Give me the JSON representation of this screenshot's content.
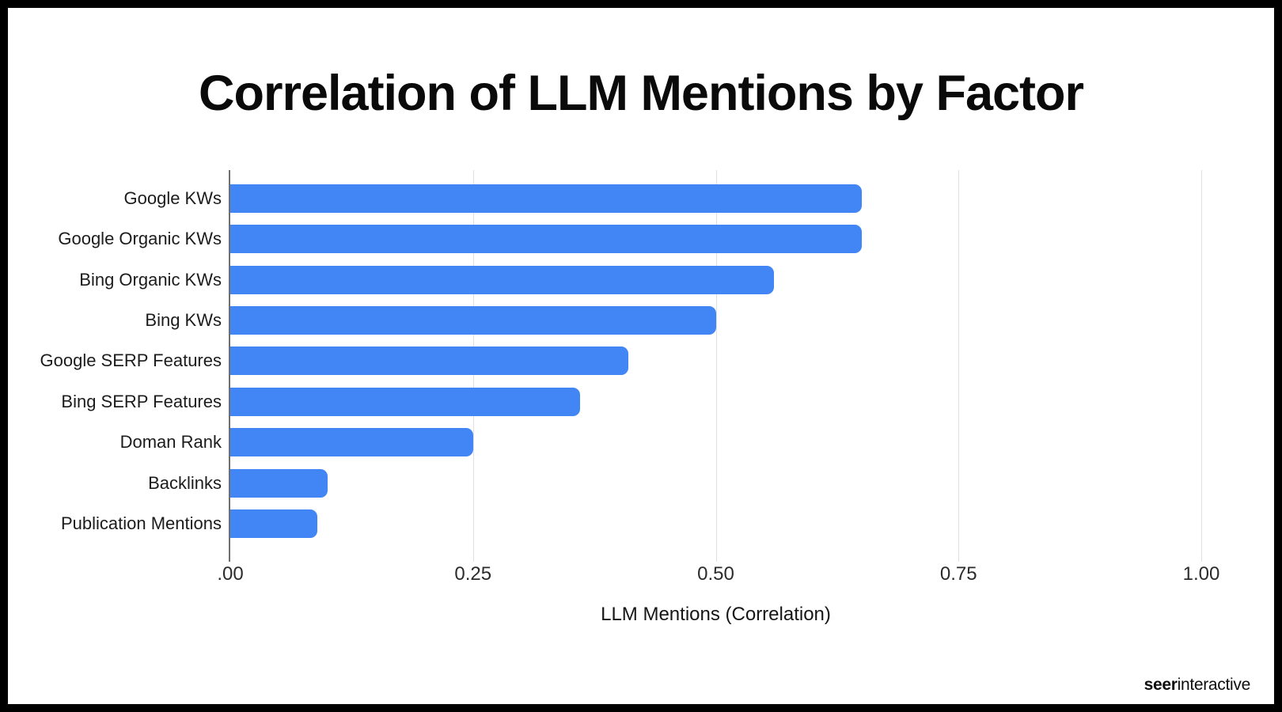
{
  "title": "Correlation of LLM Mentions by Factor",
  "chart_data": {
    "type": "bar",
    "orientation": "horizontal",
    "title": "Correlation of LLM Mentions by Factor",
    "categories": [
      "Google KWs",
      "Google Organic KWs",
      "Bing Organic KWs",
      "Bing KWs",
      "Google SERP Features",
      "Bing SERP Features",
      "Doman Rank",
      "Backlinks",
      "Publication Mentions"
    ],
    "values": [
      0.65,
      0.65,
      0.56,
      0.5,
      0.41,
      0.36,
      0.25,
      0.1,
      0.09
    ],
    "xlabel": "LLM Mentions (Correlation)",
    "xlim": [
      0,
      1.0
    ],
    "x_ticks": [
      ".00",
      "0.25",
      "0.50",
      "0.75",
      "1.00"
    ],
    "x_tick_values": [
      0,
      0.25,
      0.5,
      0.75,
      1.0
    ],
    "grid": "vertical-gridlines",
    "legend": "none",
    "colors": {
      "bar": "#4285F4",
      "gridline": "#e0e0e0",
      "axis_line": "#6f6f6f",
      "text": "#1c1c1c",
      "background": "#ffffff",
      "frame_border": "#000000"
    }
  },
  "footer": {
    "logo_bold": "seer",
    "logo_regular": "interactive"
  }
}
